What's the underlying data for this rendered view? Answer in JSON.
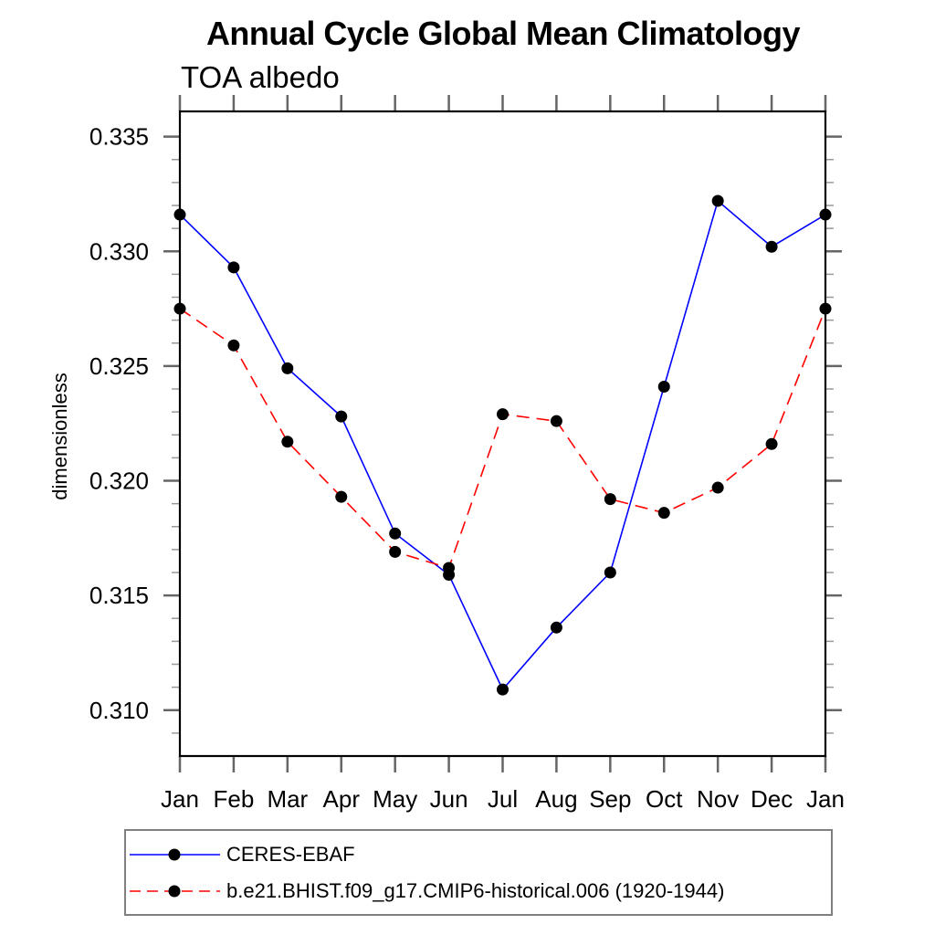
{
  "page": {
    "background": "#ffffff"
  },
  "chart": {
    "title": "Annual Cycle Global Mean Climatology",
    "subtitle": "TOA albedo",
    "ylabel": "dimensionless"
  },
  "legend": {
    "items": [
      {
        "label": "CERES-EBAF",
        "line_color": "#0000ff",
        "line_style": "solid",
        "marker": "filled-circle",
        "marker_color": "#000000"
      },
      {
        "label": "b.e21.BHIST.f09_g17.CMIP6-historical.006 (1920-1944)",
        "line_color": "#ff0000",
        "line_style": "dashed",
        "marker": "filled-circle",
        "marker_color": "#000000"
      }
    ]
  },
  "chart_data": {
    "type": "line",
    "title": "Annual Cycle Global Mean Climatology",
    "subtitle": "TOA albedo",
    "xlabel": "",
    "ylabel": "dimensionless",
    "categories": [
      "Jan",
      "Feb",
      "Mar",
      "Apr",
      "May",
      "Jun",
      "Jul",
      "Aug",
      "Sep",
      "Oct",
      "Nov",
      "Dec",
      "Jan"
    ],
    "ylim": [
      0.308,
      0.3361
    ],
    "y_major_ticks": [
      0.31,
      0.315,
      0.32,
      0.325,
      0.33,
      0.335
    ],
    "y_major_tick_labels": [
      "0.310",
      "0.315",
      "0.320",
      "0.325",
      "0.330",
      "0.335"
    ],
    "y_minor_step": 0.001,
    "grid": false,
    "legend_position": "bottom",
    "marker_radius_px": 6.5,
    "series": [
      {
        "name": "CERES-EBAF",
        "color": "#0000ff",
        "style": "solid",
        "marker_color": "#000000",
        "values": [
          0.3316,
          0.3293,
          0.3249,
          0.3228,
          0.3177,
          0.3159,
          0.3109,
          0.3136,
          0.316,
          0.3241,
          0.3322,
          0.3302,
          0.3316
        ]
      },
      {
        "name": "b.e21.BHIST.f09_g17.CMIP6-historical.006 (1920-1944)",
        "color": "#ff0000",
        "style": "dashed",
        "marker_color": "#000000",
        "values": [
          0.3275,
          0.3259,
          0.3217,
          0.3193,
          0.3169,
          0.3162,
          0.3229,
          0.3226,
          0.3192,
          0.3186,
          0.3197,
          0.3216,
          0.3275
        ]
      }
    ]
  }
}
